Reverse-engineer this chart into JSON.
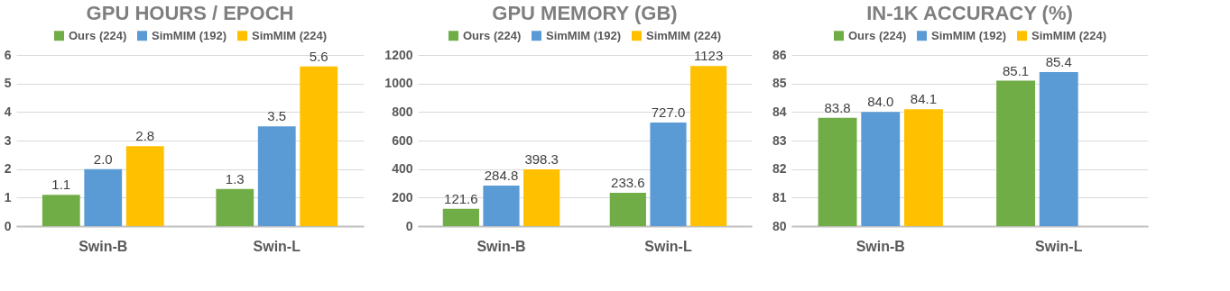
{
  "chart_data": [
    {
      "type": "bar",
      "title": "GPU HOURS / EPOCH",
      "categories": [
        "Swin-B",
        "Swin-L"
      ],
      "series": [
        {
          "name": "Ours (224)",
          "color": "#70ad47",
          "values": [
            1.1,
            1.3
          ],
          "value_labels": [
            "1.1",
            "1.3"
          ]
        },
        {
          "name": "SimMIM (192)",
          "color": "#5b9bd5",
          "values": [
            2.0,
            3.5
          ],
          "value_labels": [
            "2.0",
            "3.5"
          ]
        },
        {
          "name": "SimMIM (224)",
          "color": "#ffc000",
          "values": [
            2.8,
            5.6
          ],
          "value_labels": [
            "2.8",
            "5.6"
          ]
        }
      ],
      "ylim": [
        0,
        6
      ],
      "yticks": [
        0,
        1,
        2,
        3,
        4,
        5,
        6
      ],
      "grid": "y",
      "legend": "top"
    },
    {
      "type": "bar",
      "title": "GPU MEMORY (GB)",
      "categories": [
        "Swin-B",
        "Swin-L"
      ],
      "series": [
        {
          "name": "Ours (224)",
          "color": "#70ad47",
          "values": [
            121.6,
            233.6
          ],
          "value_labels": [
            "121.6",
            "233.6"
          ]
        },
        {
          "name": "SimMIM (192)",
          "color": "#5b9bd5",
          "values": [
            284.8,
            727.0
          ],
          "value_labels": [
            "284.8",
            "727.0"
          ]
        },
        {
          "name": "SimMIM (224)",
          "color": "#ffc000",
          "values": [
            398.3,
            1123
          ],
          "value_labels": [
            "398.3",
            "1123"
          ]
        }
      ],
      "ylim": [
        0,
        1200
      ],
      "yticks": [
        0,
        200,
        400,
        600,
        800,
        1000,
        1200
      ],
      "grid": "y",
      "legend": "top"
    },
    {
      "type": "bar",
      "title": "IN-1K ACCURACY (%)",
      "categories": [
        "Swin-B",
        "Swin-L"
      ],
      "series": [
        {
          "name": "Ours (224)",
          "color": "#70ad47",
          "values": [
            83.8,
            85.1
          ],
          "value_labels": [
            "83.8",
            "85.1"
          ]
        },
        {
          "name": "SimMIM (192)",
          "color": "#5b9bd5",
          "values": [
            84.0,
            85.4
          ],
          "value_labels": [
            "84.0",
            "85.4"
          ]
        },
        {
          "name": "SimMIM (224)",
          "color": "#ffc000",
          "values": [
            84.1,
            null
          ],
          "value_labels": [
            "84.1",
            null
          ]
        }
      ],
      "ylim": [
        80,
        86
      ],
      "yticks": [
        80,
        81,
        82,
        83,
        84,
        85,
        86
      ],
      "grid": "y",
      "legend": "top"
    }
  ]
}
